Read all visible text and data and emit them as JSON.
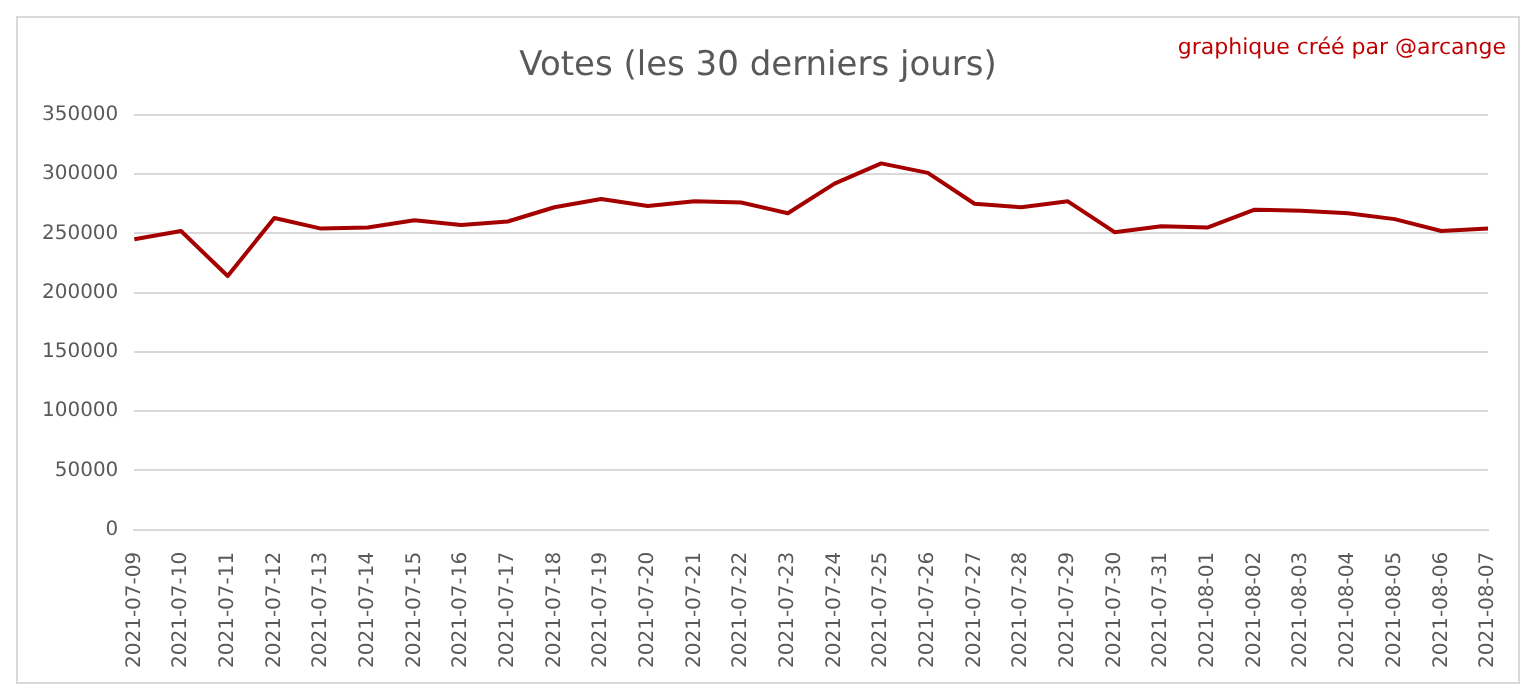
{
  "chart_data": {
    "type": "line",
    "title": "Votes (les 30 derniers jours)",
    "annotations": [
      "graphique créé par @arcange"
    ],
    "categories": [
      "2021-07-09",
      "2021-07-10",
      "2021-07-11",
      "2021-07-12",
      "2021-07-13",
      "2021-07-14",
      "2021-07-15",
      "2021-07-16",
      "2021-07-17",
      "2021-07-18",
      "2021-07-19",
      "2021-07-20",
      "2021-07-21",
      "2021-07-22",
      "2021-07-23",
      "2021-07-24",
      "2021-07-25",
      "2021-07-26",
      "2021-07-27",
      "2021-07-28",
      "2021-07-29",
      "2021-07-30",
      "2021-07-31",
      "2021-08-01",
      "2021-08-02",
      "2021-08-03",
      "2021-08-04",
      "2021-08-05",
      "2021-08-06",
      "2021-08-07"
    ],
    "series": [
      {
        "color": "#a50000",
        "values": [
          245000,
          252000,
          214000,
          263000,
          254000,
          255000,
          261000,
          257000,
          260000,
          272000,
          279000,
          273000,
          277000,
          276000,
          267000,
          292000,
          309000,
          301000,
          275000,
          272000,
          277000,
          251000,
          256000,
          255000,
          270000,
          269000,
          267000,
          262000,
          252000,
          254000
        ]
      }
    ],
    "ylim": [
      0,
      350000
    ],
    "yticks": [
      0,
      50000,
      100000,
      150000,
      200000,
      250000,
      300000,
      350000
    ],
    "grid": "y",
    "legend": false,
    "marker": "none",
    "line_style": "solid"
  }
}
